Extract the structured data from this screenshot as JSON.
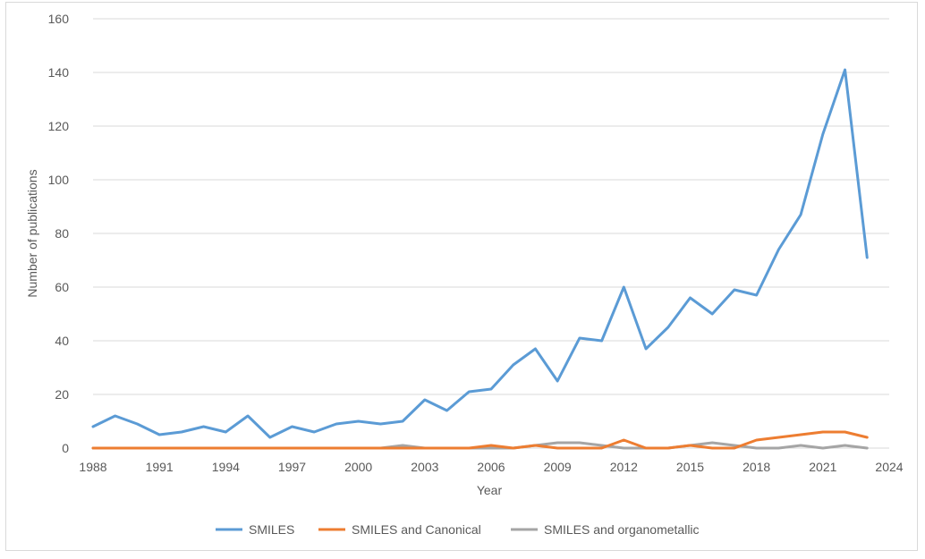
{
  "chart_data": {
    "type": "line",
    "title": "",
    "xlabel": "Year",
    "ylabel": "Number of publications",
    "xlim": [
      1988,
      2024
    ],
    "ylim": [
      0,
      160
    ],
    "x_ticks": [
      "1988",
      "1991",
      "1994",
      "1997",
      "2000",
      "2003",
      "2006",
      "2009",
      "2012",
      "2015",
      "2018",
      "2021",
      "2024"
    ],
    "y_ticks": [
      "0",
      "20",
      "40",
      "60",
      "80",
      "100",
      "120",
      "140",
      "160"
    ],
    "grid": "horizontal",
    "legend_position": "bottom",
    "x": [
      1988,
      1989,
      1990,
      1991,
      1992,
      1993,
      1994,
      1995,
      1996,
      1997,
      1998,
      1999,
      2000,
      2001,
      2002,
      2003,
      2004,
      2005,
      2006,
      2007,
      2008,
      2009,
      2010,
      2011,
      2012,
      2013,
      2014,
      2015,
      2016,
      2017,
      2018,
      2019,
      2020,
      2021,
      2022,
      2023
    ],
    "series": [
      {
        "name": "SMILES",
        "color": "#5b9bd5",
        "values": [
          8,
          12,
          9,
          5,
          6,
          8,
          6,
          12,
          4,
          8,
          6,
          9,
          10,
          9,
          10,
          18,
          14,
          21,
          22,
          31,
          37,
          25,
          41,
          40,
          60,
          37,
          45,
          56,
          50,
          59,
          57,
          74,
          87,
          117,
          141,
          71
        ]
      },
      {
        "name": "SMILES and Canonical",
        "color": "#ed7d31",
        "values": [
          0,
          0,
          0,
          0,
          0,
          0,
          0,
          0,
          0,
          0,
          0,
          0,
          0,
          0,
          0,
          0,
          0,
          0,
          1,
          0,
          1,
          0,
          0,
          0,
          3,
          0,
          0,
          1,
          0,
          0,
          3,
          4,
          5,
          6,
          6,
          4
        ]
      },
      {
        "name": "SMILES and organometallic",
        "color": "#a5a5a5",
        "values": [
          0,
          0,
          0,
          0,
          0,
          0,
          0,
          0,
          0,
          0,
          0,
          0,
          0,
          0,
          1,
          0,
          0,
          0,
          0,
          0,
          1,
          2,
          2,
          1,
          0,
          0,
          0,
          1,
          2,
          1,
          0,
          0,
          1,
          0,
          1,
          0
        ]
      }
    ]
  }
}
